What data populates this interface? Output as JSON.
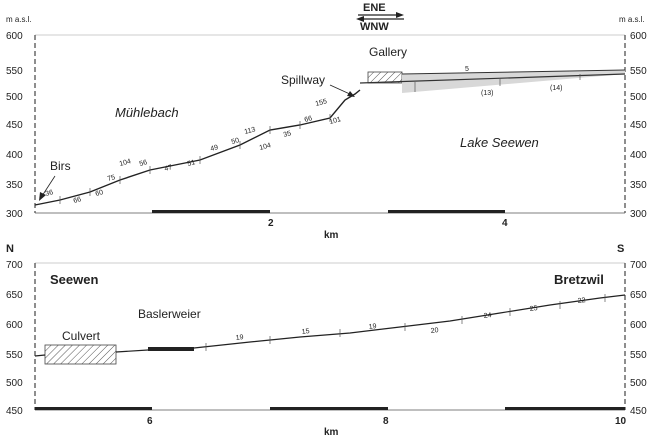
{
  "top": {
    "unit_left": "m a.s.l.",
    "unit_right": "m a.s.l.",
    "yticks": [
      "600",
      "550",
      "500",
      "450",
      "400",
      "350",
      "300"
    ],
    "xticks": [
      "2",
      "4"
    ],
    "xlabel": "km",
    "dir_top": "ENE",
    "dir_bottom": "WNW",
    "labels": {
      "gallery": "Gallery",
      "spillway": "Spillway",
      "muhlebach": "Mühlebach",
      "lake": "Lake Seewen",
      "birs": "Birs"
    },
    "segment_labels": [
      "36",
      "66",
      "60",
      "75",
      "104",
      "56",
      "47",
      "51",
      "49",
      "50",
      "113",
      "104",
      "35",
      "66",
      "155",
      "101",
      "5",
      "(13)",
      "(14)"
    ]
  },
  "bottom": {
    "yticks": [
      "700",
      "650",
      "600",
      "550",
      "500",
      "450"
    ],
    "xticks": [
      "6",
      "8",
      "10"
    ],
    "xlabel": "km",
    "corner_left": "N",
    "corner_right": "S",
    "labels": {
      "seewen": "Seewen",
      "bretzwil": "Bretzwil",
      "culvert": "Culvert",
      "baslerweier": "Baslerweier"
    },
    "segment_labels": [
      "19",
      "15",
      "19",
      "20",
      "24",
      "25",
      "22"
    ]
  }
}
